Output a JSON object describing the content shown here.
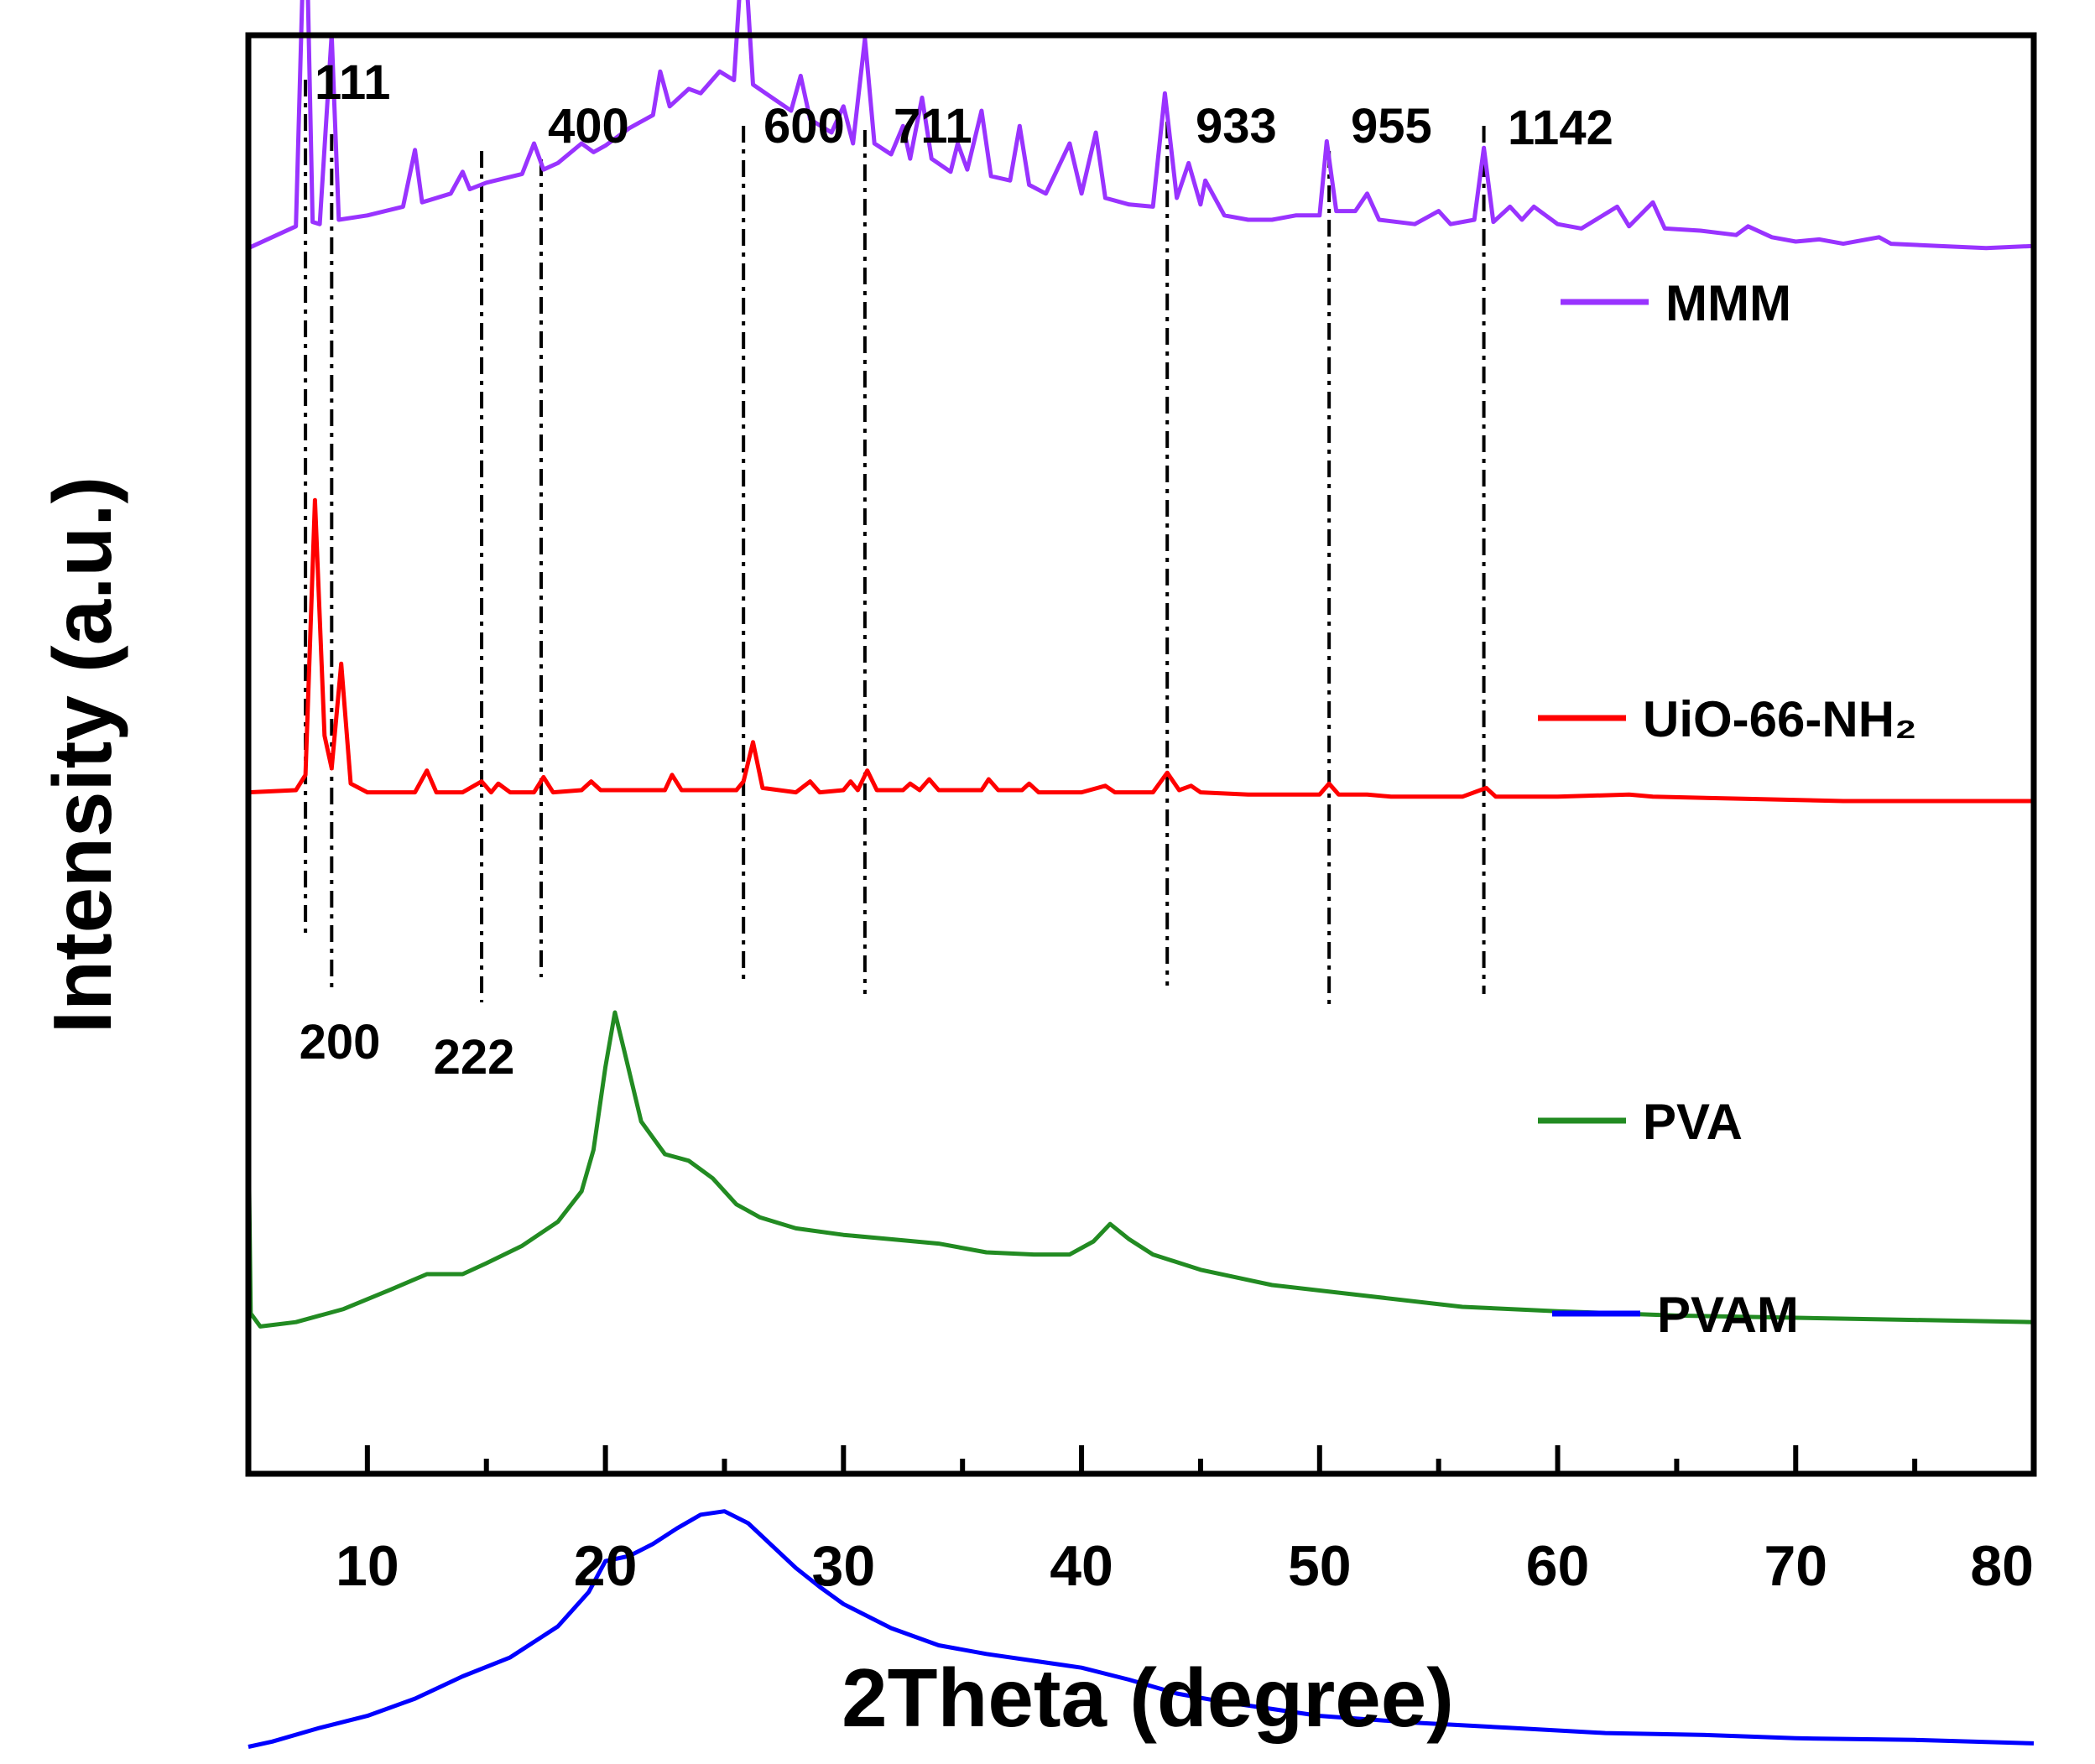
{
  "chart_data": {
    "type": "line",
    "title": "",
    "xlabel": "2Theta (degree)",
    "ylabel": "Intensity (a.u.)",
    "xlim": [
      5,
      80
    ],
    "xticks": [
      10,
      20,
      30,
      40,
      50,
      60,
      70,
      80
    ],
    "yticks": "none",
    "grid": false,
    "legend": "right, beside each curve",
    "peak_labels": [
      {
        "text": "111",
        "x": 7.4
      },
      {
        "text": "200",
        "x": 8.5
      },
      {
        "text": "222",
        "x": 14.8
      },
      {
        "text": "400",
        "x": 17.3
      },
      {
        "text": "600",
        "x": 25.8
      },
      {
        "text": "711",
        "x": 30.9
      },
      {
        "text": "933",
        "x": 43.6
      },
      {
        "text": "955",
        "x": 50.4
      },
      {
        "text": "1142",
        "x": 56.9
      }
    ],
    "series": [
      {
        "name": "MMM",
        "color": "#9933ff",
        "points": [
          [
            5,
            0.97
          ],
          [
            7,
            1.07
          ],
          [
            7.4,
            2.66
          ],
          [
            7.7,
            1.09
          ],
          [
            8,
            1.08
          ],
          [
            8.5,
            1.95
          ],
          [
            8.8,
            1.1
          ],
          [
            10,
            1.12
          ],
          [
            11.5,
            1.16
          ],
          [
            12,
            1.42
          ],
          [
            12.3,
            1.18
          ],
          [
            13.5,
            1.22
          ],
          [
            14,
            1.32
          ],
          [
            14.3,
            1.24
          ],
          [
            15,
            1.27
          ],
          [
            16.5,
            1.31
          ],
          [
            17,
            1.45
          ],
          [
            17.4,
            1.33
          ],
          [
            18,
            1.36
          ],
          [
            19,
            1.45
          ],
          [
            19.5,
            1.41
          ],
          [
            20,
            1.44
          ],
          [
            21,
            1.52
          ],
          [
            22,
            1.58
          ],
          [
            22.3,
            1.78
          ],
          [
            22.7,
            1.62
          ],
          [
            23.5,
            1.7
          ],
          [
            24,
            1.68
          ],
          [
            24.8,
            1.78
          ],
          [
            25.4,
            1.74
          ],
          [
            25.8,
            2.42
          ],
          [
            26.2,
            1.72
          ],
          [
            27,
            1.66
          ],
          [
            27.8,
            1.6
          ],
          [
            28.2,
            1.76
          ],
          [
            28.6,
            1.56
          ],
          [
            29.5,
            1.5
          ],
          [
            30,
            1.62
          ],
          [
            30.4,
            1.45
          ],
          [
            30.9,
            1.93
          ],
          [
            31.3,
            1.45
          ],
          [
            32,
            1.4
          ],
          [
            32.5,
            1.53
          ],
          [
            32.8,
            1.38
          ],
          [
            33.3,
            1.66
          ],
          [
            33.7,
            1.38
          ],
          [
            34.5,
            1.32
          ],
          [
            34.8,
            1.45
          ],
          [
            35.2,
            1.33
          ],
          [
            35.8,
            1.6
          ],
          [
            36.2,
            1.3
          ],
          [
            37,
            1.28
          ],
          [
            37.4,
            1.53
          ],
          [
            37.8,
            1.26
          ],
          [
            38.5,
            1.22
          ],
          [
            39.5,
            1.45
          ],
          [
            40,
            1.22
          ],
          [
            40.6,
            1.5
          ],
          [
            41,
            1.2
          ],
          [
            42,
            1.17
          ],
          [
            43,
            1.16
          ],
          [
            43.5,
            1.68
          ],
          [
            44,
            1.2
          ],
          [
            44.5,
            1.36
          ],
          [
            45,
            1.17
          ],
          [
            45.2,
            1.28
          ],
          [
            46,
            1.12
          ],
          [
            47,
            1.1
          ],
          [
            48,
            1.1
          ],
          [
            49,
            1.12
          ],
          [
            50,
            1.12
          ],
          [
            50.3,
            1.46
          ],
          [
            50.7,
            1.14
          ],
          [
            51.5,
            1.14
          ],
          [
            52,
            1.22
          ],
          [
            52.5,
            1.1
          ],
          [
            54,
            1.08
          ],
          [
            55,
            1.14
          ],
          [
            55.5,
            1.08
          ],
          [
            56.5,
            1.1
          ],
          [
            56.9,
            1.43
          ],
          [
            57.3,
            1.09
          ],
          [
            58,
            1.16
          ],
          [
            58.5,
            1.1
          ],
          [
            59,
            1.16
          ],
          [
            59.5,
            1.12
          ],
          [
            60,
            1.08
          ],
          [
            61,
            1.06
          ],
          [
            62.5,
            1.16
          ],
          [
            63,
            1.07
          ],
          [
            64,
            1.18
          ],
          [
            64.5,
            1.06
          ],
          [
            66,
            1.05
          ],
          [
            67.5,
            1.03
          ],
          [
            68,
            1.07
          ],
          [
            69,
            1.02
          ],
          [
            70,
            1.0
          ],
          [
            71,
            1.01
          ],
          [
            72,
            0.99
          ],
          [
            73.5,
            1.02
          ],
          [
            74,
            0.99
          ],
          [
            76,
            0.98
          ],
          [
            78,
            0.97
          ],
          [
            80,
            0.98
          ]
        ]
      },
      {
        "name": "UiO-66-NH₂",
        "color": "#ff0000",
        "points": [
          [
            5,
            0.04
          ],
          [
            7,
            0.05
          ],
          [
            7.4,
            0.12
          ],
          [
            7.8,
            1.38
          ],
          [
            8.2,
            0.3
          ],
          [
            8.5,
            0.15
          ],
          [
            8.9,
            0.63
          ],
          [
            9.3,
            0.08
          ],
          [
            10,
            0.04
          ],
          [
            12,
            0.04
          ],
          [
            12.5,
            0.14
          ],
          [
            12.9,
            0.04
          ],
          [
            14,
            0.04
          ],
          [
            14.8,
            0.09
          ],
          [
            15.2,
            0.04
          ],
          [
            15.5,
            0.08
          ],
          [
            16,
            0.04
          ],
          [
            17,
            0.04
          ],
          [
            17.4,
            0.11
          ],
          [
            17.8,
            0.04
          ],
          [
            19,
            0.05
          ],
          [
            19.4,
            0.09
          ],
          [
            19.8,
            0.05
          ],
          [
            21,
            0.05
          ],
          [
            22.5,
            0.05
          ],
          [
            22.8,
            0.12
          ],
          [
            23.2,
            0.05
          ],
          [
            24.5,
            0.05
          ],
          [
            25.5,
            0.05
          ],
          [
            25.8,
            0.09
          ],
          [
            26.2,
            0.27
          ],
          [
            26.6,
            0.06
          ],
          [
            28,
            0.04
          ],
          [
            28.6,
            0.09
          ],
          [
            29,
            0.04
          ],
          [
            30,
            0.05
          ],
          [
            30.3,
            0.09
          ],
          [
            30.6,
            0.05
          ],
          [
            31,
            0.14
          ],
          [
            31.4,
            0.05
          ],
          [
            32.5,
            0.05
          ],
          [
            32.8,
            0.08
          ],
          [
            33.2,
            0.05
          ],
          [
            33.6,
            0.1
          ],
          [
            34,
            0.05
          ],
          [
            35.8,
            0.05
          ],
          [
            36.1,
            0.1
          ],
          [
            36.5,
            0.05
          ],
          [
            37.5,
            0.05
          ],
          [
            37.8,
            0.08
          ],
          [
            38.2,
            0.04
          ],
          [
            40,
            0.04
          ],
          [
            41,
            0.07
          ],
          [
            41.4,
            0.04
          ],
          [
            43,
            0.04
          ],
          [
            43.6,
            0.13
          ],
          [
            44.1,
            0.05
          ],
          [
            44.6,
            0.07
          ],
          [
            45,
            0.04
          ],
          [
            47,
            0.03
          ],
          [
            50,
            0.03
          ],
          [
            50.4,
            0.08
          ],
          [
            50.8,
            0.03
          ],
          [
            52,
            0.03
          ],
          [
            53,
            0.02
          ],
          [
            56,
            0.02
          ],
          [
            57,
            0.06
          ],
          [
            57.4,
            0.02
          ],
          [
            60,
            0.02
          ],
          [
            63,
            0.03
          ],
          [
            64,
            0.02
          ],
          [
            68,
            0.01
          ],
          [
            72,
            0.0
          ],
          [
            76,
            0.0
          ],
          [
            80,
            0.0
          ]
        ]
      },
      {
        "name": "PVA",
        "color": "#228b22",
        "points": [
          [
            5,
            0.3
          ],
          [
            5.1,
            -0.58
          ],
          [
            5.5,
            -0.64
          ],
          [
            7,
            -0.62
          ],
          [
            9,
            -0.56
          ],
          [
            11,
            -0.47
          ],
          [
            12.5,
            -0.4
          ],
          [
            14,
            -0.4
          ],
          [
            15,
            -0.35
          ],
          [
            16.5,
            -0.27
          ],
          [
            18,
            -0.16
          ],
          [
            19,
            -0.02
          ],
          [
            19.5,
            0.17
          ],
          [
            20,
            0.55
          ],
          [
            20.4,
            0.8
          ],
          [
            20.8,
            0.62
          ],
          [
            21.5,
            0.3
          ],
          [
            22.5,
            0.15
          ],
          [
            23.5,
            0.12
          ],
          [
            24.5,
            0.04
          ],
          [
            25.5,
            -0.08
          ],
          [
            26.5,
            -0.14
          ],
          [
            28,
            -0.19
          ],
          [
            30,
            -0.22
          ],
          [
            32,
            -0.24
          ],
          [
            34,
            -0.26
          ],
          [
            36,
            -0.3
          ],
          [
            38,
            -0.31
          ],
          [
            39.5,
            -0.31
          ],
          [
            40.5,
            -0.25
          ],
          [
            41.2,
            -0.17
          ],
          [
            42,
            -0.24
          ],
          [
            43,
            -0.31
          ],
          [
            45,
            -0.38
          ],
          [
            48,
            -0.45
          ],
          [
            52,
            -0.5
          ],
          [
            56,
            -0.55
          ],
          [
            60,
            -0.57
          ],
          [
            65,
            -0.59
          ],
          [
            70,
            -0.6
          ],
          [
            75,
            -0.61
          ],
          [
            80,
            -0.62
          ]
        ]
      },
      {
        "name": "PVAM",
        "color": "#0000ff",
        "points": [
          [
            5,
            -1.9
          ],
          [
            6,
            -1.87
          ],
          [
            8,
            -1.79
          ],
          [
            10,
            -1.72
          ],
          [
            12,
            -1.62
          ],
          [
            14,
            -1.49
          ],
          [
            16,
            -1.38
          ],
          [
            18,
            -1.2
          ],
          [
            19.3,
            -1.0
          ],
          [
            20,
            -0.82
          ],
          [
            21,
            -0.79
          ],
          [
            22,
            -0.72
          ],
          [
            23,
            -0.63
          ],
          [
            24,
            -0.55
          ],
          [
            25,
            -0.53
          ],
          [
            26,
            -0.6
          ],
          [
            27,
            -0.73
          ],
          [
            28,
            -0.86
          ],
          [
            29,
            -0.97
          ],
          [
            30,
            -1.07
          ],
          [
            32,
            -1.21
          ],
          [
            34,
            -1.31
          ],
          [
            36,
            -1.36
          ],
          [
            38,
            -1.4
          ],
          [
            40,
            -1.44
          ],
          [
            42,
            -1.51
          ],
          [
            44,
            -1.59
          ],
          [
            46,
            -1.64
          ],
          [
            48,
            -1.68
          ],
          [
            50,
            -1.72
          ],
          [
            54,
            -1.76
          ],
          [
            58,
            -1.79
          ],
          [
            62,
            -1.82
          ],
          [
            66,
            -1.83
          ],
          [
            70,
            -1.85
          ],
          [
            75,
            -1.86
          ],
          [
            80,
            -1.88
          ]
        ]
      }
    ]
  }
}
